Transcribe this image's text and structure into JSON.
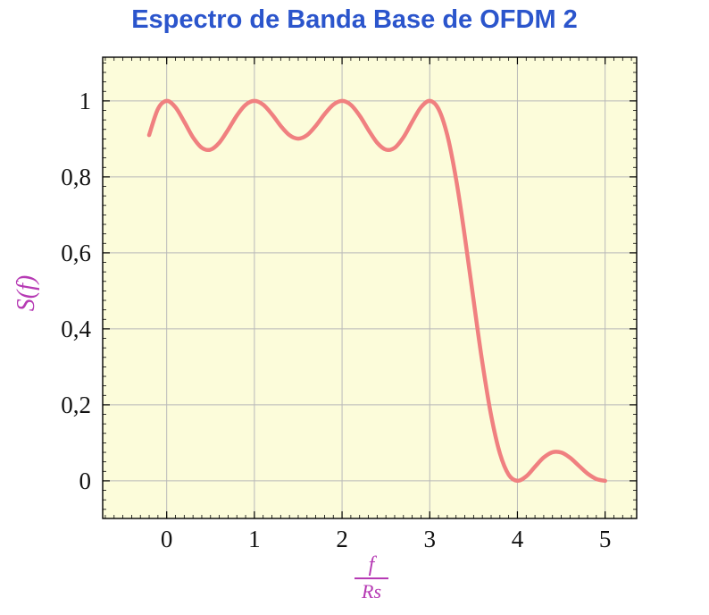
{
  "style": {
    "title_color": "#2b55cc",
    "label_color": "#b63ab4",
    "curve_color": "#f08080",
    "plot_bg": "#fcfcda",
    "grid_color": "#b9b9b9",
    "frame_color": "#000000",
    "tick_label_color": "#111111"
  },
  "chart_data": {
    "type": "line",
    "title": "Espectro de Banda Base de OFDM 2",
    "xlabel": "f/Rs",
    "xlabel_fraction": {
      "numerator": "f",
      "denominator": "Rs"
    },
    "ylabel": "S(f)",
    "series_name": "S(f)",
    "grid": true,
    "legend": "none",
    "xlim": [
      -0.73,
      5.36
    ],
    "ylim": [
      -0.099,
      1.115
    ],
    "x_ticks": {
      "values": [
        0,
        1,
        2,
        3,
        4,
        5
      ],
      "labels": [
        "0",
        "1",
        "2",
        "3",
        "4",
        "5"
      ]
    },
    "y_ticks": {
      "values": [
        0,
        0.2,
        0.4,
        0.6,
        0.8,
        1
      ],
      "labels": [
        "0",
        "0,2",
        "0,4",
        "0,6",
        "0,8",
        "1"
      ]
    },
    "x": [
      -0.2,
      -0.1,
      0,
      0.1,
      0.2,
      0.3,
      0.4,
      0.5,
      0.6,
      0.7,
      0.8,
      0.9,
      1,
      1.1,
      1.2,
      1.3,
      1.4,
      1.5,
      1.6,
      1.7,
      1.8,
      1.9,
      2,
      2.1,
      2.2,
      2.3,
      2.4,
      2.5,
      2.6,
      2.7,
      2.8,
      2.9,
      3,
      3.1,
      3.2,
      3.3,
      3.4,
      3.5,
      3.6,
      3.7,
      3.8,
      3.9,
      4,
      4.1,
      4.2,
      4.3,
      4.4,
      4.5,
      4.6,
      4.7,
      4.8,
      4.9,
      5
    ],
    "y": [
      0.9101,
      0.9787,
      1,
      0.9833,
      0.9451,
      0.9042,
      0.8767,
      0.8718,
      0.89,
      0.924,
      0.9614,
      0.9897,
      1,
      0.9901,
      0.965,
      0.9344,
      0.9099,
      0.9006,
      0.9099,
      0.9344,
      0.965,
      0.9901,
      1,
      0.9897,
      0.9614,
      0.924,
      0.89,
      0.8718,
      0.8767,
      0.9042,
      0.9451,
      0.9833,
      1,
      0.9787,
      0.9101,
      0.7947,
      0.6434,
      0.4748,
      0.311,
      0.1722,
      0.0724,
      0.0164,
      0,
      0.0118,
      0.0369,
      0.0615,
      0.0753,
      0.0745,
      0.0608,
      0.0399,
      0.0192,
      0.0049,
      0
    ]
  }
}
